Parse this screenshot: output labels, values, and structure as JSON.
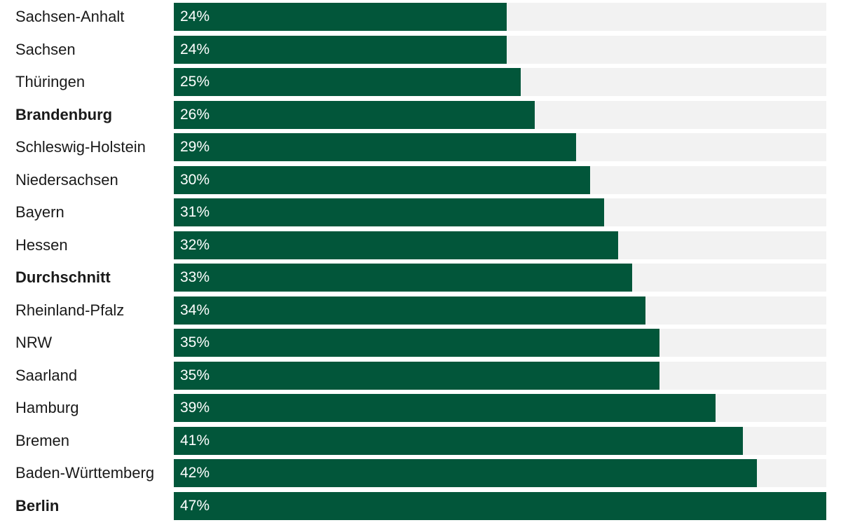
{
  "chart_data": {
    "type": "bar",
    "orientation": "horizontal",
    "categories": [
      "Sachsen-Anhalt",
      "Sachsen",
      "Thüringen",
      "Brandenburg",
      "Schleswig-Holstein",
      "Niedersachsen",
      "Bayern",
      "Hessen",
      "Durchschnitt",
      "Rheinland-Pfalz",
      "NRW",
      "Saarland",
      "Hamburg",
      "Bremen",
      "Baden-Württemberg",
      "Berlin"
    ],
    "values": [
      24,
      24,
      25,
      26,
      29,
      30,
      31,
      32,
      33,
      34,
      35,
      35,
      39,
      41,
      42,
      47
    ],
    "value_labels": [
      "24%",
      "24%",
      "25%",
      "26%",
      "29%",
      "30%",
      "31%",
      "32%",
      "33%",
      "34%",
      "35%",
      "35%",
      "39%",
      "41%",
      "42%",
      "47%"
    ],
    "highlighted": [
      "Brandenburg",
      "Durchschnitt",
      "Berlin"
    ],
    "xlim": [
      0,
      47
    ],
    "unit": "%",
    "grid": false,
    "legend": "none",
    "colors": {
      "bar": "#02563a",
      "track": "#f2f2f2",
      "value_text": "#ffffff",
      "label_text": "#1a1a1a"
    }
  }
}
